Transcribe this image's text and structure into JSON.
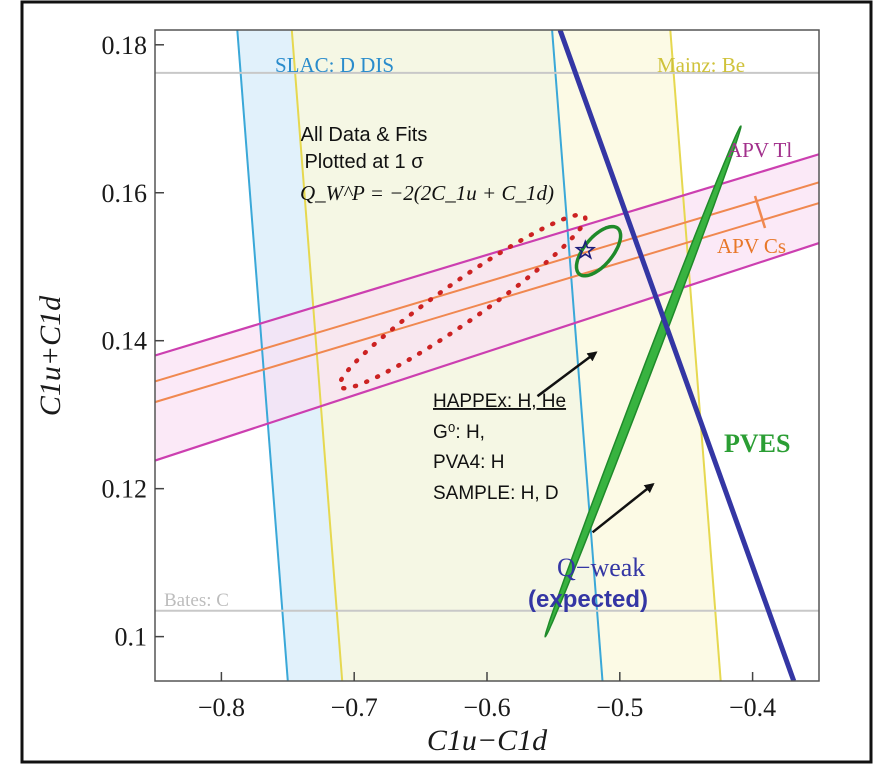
{
  "chart_data": {
    "type": "line",
    "xlabel": "C1u−C1d",
    "ylabel": "C1u+C1d",
    "xlim": [
      -0.85,
      -0.35
    ],
    "ylim": [
      0.094,
      0.182
    ],
    "xticks": [
      {
        "value": -0.8,
        "label": "−0.8"
      },
      {
        "value": -0.7,
        "label": "−0.7"
      },
      {
        "value": -0.6,
        "label": "−0.6"
      },
      {
        "value": -0.5,
        "label": "−0.5"
      },
      {
        "value": -0.4,
        "label": "−0.4"
      }
    ],
    "yticks": [
      {
        "value": 0.1,
        "label": "0.1"
      },
      {
        "value": 0.12,
        "label": "0.12"
      },
      {
        "value": 0.14,
        "label": "0.14"
      },
      {
        "value": 0.16,
        "label": "0.16"
      },
      {
        "value": 0.18,
        "label": "0.18"
      }
    ],
    "annotations": {
      "all_data_1": "All Data & Fits",
      "all_data_2": "Plotted at 1 σ",
      "formula": "Q_W^P = −2(2C_1u + C_1d)",
      "arrow_list": [
        "HAPPEx: H, He",
        "G⁰: H,",
        "PVA4: H",
        "SAMPLE: H, D"
      ]
    },
    "bands": [
      {
        "name": "SLAC: D DIS",
        "color": "#3aa8d8",
        "fill": "#dceefa",
        "left_edge": [
          [
            -0.788,
            0.182
          ],
          [
            -0.75,
            0.094
          ]
        ],
        "right_edge": [
          [
            -0.551,
            0.182
          ],
          [
            -0.513,
            0.094
          ]
        ]
      },
      {
        "name": "Mainz: Be",
        "color": "#e6d850",
        "fill": "#fbf8dc",
        "left_edge": [
          [
            -0.747,
            0.182
          ],
          [
            -0.709,
            0.094
          ]
        ],
        "right_edge": [
          [
            -0.462,
            0.182
          ],
          [
            -0.424,
            0.094
          ]
        ]
      },
      {
        "name": "APV Tl",
        "color": "#cc3fb0",
        "fill": "#f9e0f3",
        "upper_edge": [
          [
            -0.85,
            0.138
          ],
          [
            -0.35,
            0.1652
          ]
        ],
        "lower_edge": [
          [
            -0.85,
            0.1238
          ],
          [
            -0.35,
            0.1532
          ]
        ]
      },
      {
        "name": "APV Cs",
        "color": "#f08850",
        "upper_edge": [
          [
            -0.85,
            0.1345
          ],
          [
            -0.35,
            0.1614
          ]
        ],
        "lower_edge": [
          [
            -0.85,
            0.1317
          ],
          [
            -0.35,
            0.1586
          ]
        ]
      },
      {
        "name": "Bates: C",
        "color": "#c8c8c8",
        "lines": [
          [
            [
              -0.85,
              0.1762
            ],
            [
              -0.35,
              0.1762
            ]
          ],
          [
            [
              -0.85,
              0.1035
            ],
            [
              -0.35,
              0.1035
            ]
          ]
        ]
      }
    ],
    "series": [
      {
        "name": "Q−weak",
        "name2": "(expected)",
        "color": "#3436a4",
        "x": [
          -0.545,
          -0.369
        ],
        "y": [
          0.182,
          0.094
        ]
      }
    ],
    "ellipses": [
      {
        "name": "PVES",
        "color": "#38b340",
        "edge": "#1f8a2a",
        "center": [
          -0.4825,
          0.1345
        ],
        "semi_major": [
          0.0735,
          0.0345
        ],
        "semi_minor": [
          0.0055,
          0.0009
        ]
      },
      {
        "name": "",
        "color": "#1f8a2a",
        "center": [
          -0.516,
          0.1521
        ],
        "semi_major": [
          0.0165,
          0.0018
        ],
        "semi_minor": [
          0.0018,
          0.0028
        ]
      },
      {
        "name": "",
        "color": "#cc2222",
        "dotted": true,
        "center": [
          -0.6185,
          0.1453
        ],
        "semi_major": [
          0.0925,
          0.0112
        ],
        "semi_minor": [
          0.0018,
          0.0035
        ]
      }
    ],
    "markers": [
      {
        "x": -0.526,
        "y": 0.1522,
        "symbol": "star"
      }
    ],
    "arrows": [
      {
        "from": [
          -0.562,
          0.1325
        ],
        "to": [
          -0.518,
          0.1384
        ]
      },
      {
        "from": [
          -0.5205,
          0.1141
        ],
        "to": [
          -0.475,
          0.1206
        ]
      }
    ],
    "grid": false,
    "legend": "none"
  }
}
